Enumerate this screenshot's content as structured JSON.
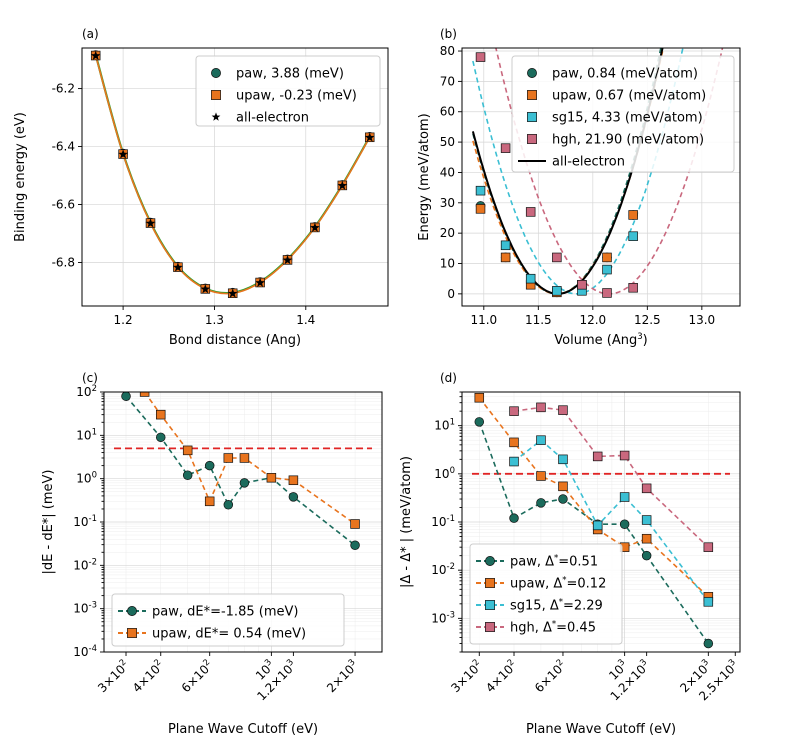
{
  "chart_data": [
    {
      "panel": "(a)",
      "type": "line",
      "xlabel": "Bond distance (Ang)",
      "ylabel": "Binding energy (eV)",
      "xlim": [
        1.155,
        1.49
      ],
      "ylim": [
        -6.95,
        -6.06
      ],
      "xticks": [
        1.2,
        1.3,
        1.4
      ],
      "xtick_labels": [
        "1.2",
        "1.3",
        "1.4"
      ],
      "yticks": [
        -6.8,
        -6.6,
        -6.4,
        -6.2
      ],
      "ytick_labels": [
        "-6.8",
        "-6.6",
        "-6.4",
        "-6.2"
      ],
      "grid": true,
      "legend_position": "top-right",
      "x": [
        1.17,
        1.2,
        1.23,
        1.26,
        1.29,
        1.32,
        1.35,
        1.38,
        1.41,
        1.44,
        1.47
      ],
      "series": [
        {
          "name": "paw,  3.88 (meV)",
          "marker": "circle",
          "color": "#1b6b5c",
          "curve_color": "#2ca02c",
          "values": [
            -6.084,
            -6.424,
            -6.662,
            -6.814,
            -6.889,
            -6.904,
            -6.867,
            -6.789,
            -6.677,
            -6.532,
            -6.366
          ]
        },
        {
          "name": "upaw, -0.23 (meV)",
          "marker": "square",
          "color": "#e8741e",
          "curve_color": "#e8741e",
          "values": [
            -6.086,
            -6.426,
            -6.664,
            -6.816,
            -6.891,
            -6.906,
            -6.869,
            -6.791,
            -6.679,
            -6.534,
            -6.368
          ]
        },
        {
          "name": "all-electron",
          "marker": "star",
          "color": "#000000",
          "values": [
            -6.087,
            -6.427,
            -6.665,
            -6.817,
            -6.892,
            -6.907,
            -6.87,
            -6.792,
            -6.68,
            -6.535,
            -6.369
          ]
        }
      ]
    },
    {
      "panel": "(b)",
      "type": "scatter",
      "xlabel": "Volume (Ang",
      "xlabel_sup": "3",
      "xlabel_end": ")",
      "ylabel": "Energy (meV/atom)",
      "xlim": [
        10.8,
        13.35
      ],
      "ylim": [
        -4,
        81
      ],
      "xticks": [
        11.0,
        11.5,
        12.0,
        12.5,
        13.0
      ],
      "xtick_labels": [
        "11.0",
        "11.5",
        "12.0",
        "12.5",
        "13.0"
      ],
      "yticks": [
        0,
        10,
        20,
        30,
        40,
        50,
        60,
        70,
        80
      ],
      "ytick_labels": [
        "0",
        "10",
        "20",
        "30",
        "40",
        "50",
        "60",
        "70",
        "80"
      ],
      "grid": true,
      "legend_position": "top-right",
      "series": [
        {
          "name": "paw, 0.84 (meV/atom)",
          "marker": "circle",
          "color": "#1b6b5c",
          "v0": 11.67,
          "k": 89.0,
          "x": [
            10.97,
            11.2,
            11.43,
            11.67,
            11.9,
            12.13,
            12.37
          ],
          "values": [
            29,
            12,
            4,
            0.5,
            3,
            12,
            26
          ]
        },
        {
          "name": "upaw, 0.67 (meV/atom)",
          "marker": "square",
          "color": "#e8741e",
          "v0": 11.67,
          "k": 85.0,
          "x": [
            10.97,
            11.2,
            11.43,
            11.67,
            11.9,
            12.13,
            12.37
          ],
          "values": [
            28,
            12,
            3,
            0.5,
            3,
            12,
            26
          ]
        },
        {
          "name": "sg15, 4.33 (meV/atom)",
          "marker": "square",
          "color": "#3bbfd3",
          "v0": 11.85,
          "k": 85.0,
          "x": [
            10.97,
            11.2,
            11.43,
            11.67,
            11.9,
            12.13,
            12.37
          ],
          "values": [
            34,
            16,
            5,
            1,
            1,
            8,
            19
          ]
        },
        {
          "name": "hgh, 21.90 (meV/atom)",
          "marker": "square",
          "color": "#c9687e",
          "v0": 12.15,
          "k": 75.0,
          "x": [
            10.97,
            11.2,
            11.43,
            11.67,
            11.9,
            12.13,
            12.37
          ],
          "values": [
            78,
            48,
            27,
            12,
            3,
            0.3,
            2
          ]
        },
        {
          "name": "all-electron",
          "line": "solid",
          "color": "#000000",
          "v0": 11.68,
          "k": 88.0
        }
      ]
    },
    {
      "panel": "(c)",
      "type": "line",
      "yscale": "log",
      "xscale": "log",
      "xlabel": "Plane Wave Cutoff (eV)",
      "ylabel": "|dE - dE*| (meV)",
      "xlim": [
        250,
        2500
      ],
      "ylim": [
        0.0001,
        100
      ],
      "xticks": [
        300,
        400,
        600,
        1000,
        1200,
        2000
      ],
      "xtick_labels": [
        [
          "3",
          "2"
        ],
        [
          "4",
          "2"
        ],
        [
          "6",
          "2"
        ],
        [
          "10",
          "3"
        ],
        [
          "1.2",
          "3"
        ],
        [
          "2",
          "3"
        ]
      ],
      "ytick_exponents": [
        -4,
        -3,
        -2,
        -1,
        0,
        1,
        2
      ],
      "grid": true,
      "legend_position": "bottom-left",
      "reference_line": 5,
      "series": [
        {
          "name": "paw, dE*=-1.85 (meV)",
          "marker": "circle",
          "color": "#1b6b5c",
          "x": [
            300,
            400,
            500,
            600,
            700,
            800,
            1000,
            1200,
            2000
          ],
          "values": [
            80,
            9,
            1.2,
            2,
            0.25,
            0.8,
            1.05,
            0.38,
            0.029
          ]
        },
        {
          "name": "upaw, dE*= 0.54 (meV)",
          "marker": "square",
          "color": "#e8741e",
          "x": [
            350,
            400,
            500,
            600,
            700,
            800,
            1000,
            1200,
            2000
          ],
          "values": [
            100,
            30,
            4.5,
            0.3,
            3,
            3,
            1.05,
            0.92,
            0.09
          ]
        }
      ]
    },
    {
      "panel": "(d)",
      "type": "line",
      "yscale": "log",
      "xscale": "log",
      "xlabel": "Plane Wave Cutoff (eV)",
      "ylabel": "|Δ - Δ* | (meV/atom)",
      "xlim": [
        260,
        2600
      ],
      "ylim": [
        0.0002,
        50
      ],
      "xticks": [
        300,
        400,
        600,
        1000,
        1200,
        2000,
        2500
      ],
      "xtick_labels": [
        [
          "3",
          "2"
        ],
        [
          "4",
          "2"
        ],
        [
          "6",
          "2"
        ],
        [
          "10",
          "3"
        ],
        [
          "1.2",
          "3"
        ],
        [
          "2",
          "3"
        ],
        [
          "2.5",
          "3"
        ]
      ],
      "ytick_exponents": [
        -3,
        -2,
        -1,
        0,
        1
      ],
      "grid": true,
      "legend_position": "bottom-left",
      "reference_line": 1,
      "series": [
        {
          "name": "paw, Δ*=0.51",
          "name_base": "paw, Δ",
          "name_tail": "=0.51",
          "marker": "circle",
          "color": "#1b6b5c",
          "x": [
            300,
            400,
            500,
            600,
            800,
            1000,
            1200,
            2000
          ],
          "values": [
            12,
            0.12,
            0.25,
            0.3,
            0.09,
            0.09,
            0.02,
            0.0003
          ]
        },
        {
          "name": "upaw, Δ*=0.12",
          "name_base": "upaw, Δ",
          "name_tail": "=0.12",
          "marker": "square",
          "color": "#e8741e",
          "x": [
            300,
            400,
            500,
            600,
            800,
            1000,
            1200,
            2000
          ],
          "values": [
            38,
            4.5,
            0.9,
            0.55,
            0.07,
            0.03,
            0.045,
            0.0028
          ]
        },
        {
          "name": "sg15, Δ*=2.29",
          "name_base": "sg15, Δ",
          "name_tail": "=2.29",
          "marker": "square",
          "color": "#3bbfd3",
          "x": [
            400,
            500,
            600,
            800,
            1000,
            1200,
            2000
          ],
          "values": [
            1.8,
            5,
            2,
            0.085,
            0.33,
            0.11,
            0.0022
          ]
        },
        {
          "name": "hgh, Δ*=0.45",
          "name_base": "hgh, Δ",
          "name_tail": "=0.45",
          "marker": "square",
          "color": "#c9687e",
          "x": [
            400,
            500,
            600,
            800,
            1000,
            1200,
            2000
          ],
          "values": [
            20,
            24,
            21,
            2.3,
            2.4,
            0.5,
            0.03
          ]
        }
      ]
    }
  ]
}
